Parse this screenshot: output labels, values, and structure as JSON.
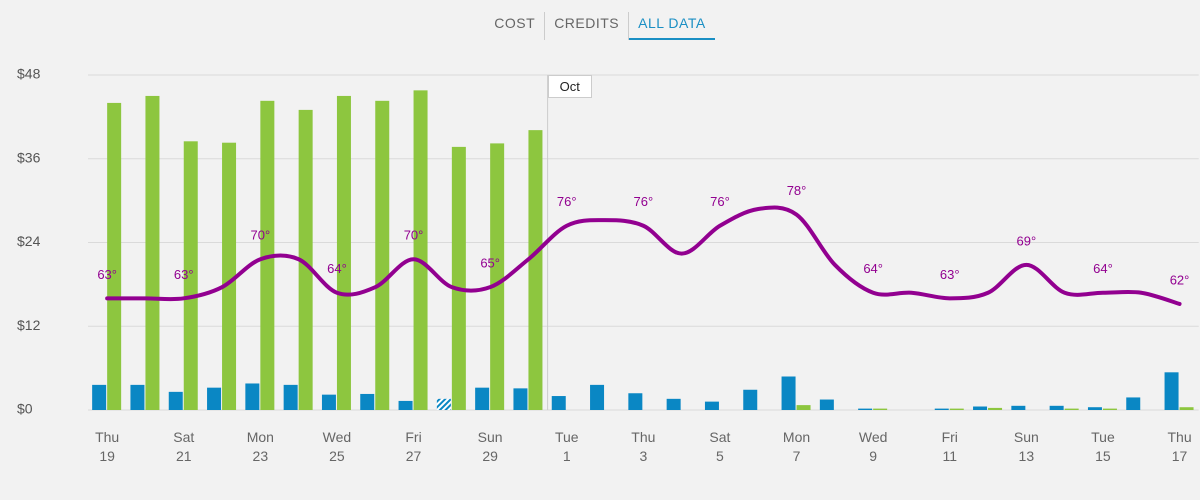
{
  "tabs": [
    {
      "label": "COST"
    },
    {
      "label": "CREDITS"
    },
    {
      "label": "ALL DATA",
      "active": true
    }
  ],
  "chart_data": {
    "type": "bar",
    "categories": [
      "Thu 19",
      null,
      "Sat 21",
      null,
      "Mon 23",
      null,
      "Wed 25",
      null,
      "Fri 27",
      null,
      "Sun 29",
      null,
      "Tue 1",
      null,
      "Thu 3",
      null,
      "Sat 5",
      null,
      "Mon 7",
      null,
      "Wed 9",
      null,
      "Fri 11",
      null,
      "Sun 13",
      null,
      "Tue 15",
      null,
      "Thu 17"
    ],
    "month_marker": {
      "label": "Oct",
      "category": 12
    },
    "ylim": [
      0,
      48
    ],
    "yticks": [
      {
        "value": 0,
        "label": "$0"
      },
      {
        "value": 12,
        "label": "$12"
      },
      {
        "value": 24,
        "label": "$24"
      },
      {
        "value": 36,
        "label": "$36"
      },
      {
        "value": 48,
        "label": "$48"
      }
    ],
    "y2lim": [
      43,
      103
    ],
    "grid": true,
    "hatched_index": 9,
    "series": [
      {
        "color": "#0a87c4",
        "values": [
          3.6,
          3.6,
          2.6,
          3.2,
          3.8,
          3.6,
          2.2,
          2.3,
          1.3,
          1.6,
          3.2,
          3.1,
          2.0,
          3.6,
          2.4,
          1.6,
          1.2,
          2.9,
          4.8,
          1.5,
          0.2,
          0,
          0.2,
          0.5,
          0.6,
          0.6,
          0.4,
          1.8,
          5.4
        ]
      },
      {
        "color": "#8dc63f",
        "values": [
          44,
          45,
          38.5,
          38.3,
          44.3,
          43,
          45,
          44.3,
          45.8,
          37.7,
          38.2,
          40.1,
          0,
          0,
          0,
          0,
          0,
          0,
          0.7,
          0,
          0.2,
          0,
          0.2,
          0.3,
          0,
          0.2,
          0.2,
          0,
          0.4
        ]
      },
      {
        "type": "line",
        "axis": "y2",
        "color": "#920090",
        "values": [
          63,
          63,
          63,
          65,
          70,
          70,
          64,
          65,
          70,
          65,
          65,
          70,
          76,
          77,
          76,
          71,
          76,
          79,
          78,
          69,
          64,
          64,
          63,
          64,
          69,
          64,
          64,
          64,
          62
        ],
        "value_labels": [
          "63°",
          null,
          "63°",
          null,
          "70°",
          null,
          "64°",
          null,
          "70°",
          null,
          "65°",
          null,
          "76°",
          null,
          "76°",
          null,
          "76°",
          null,
          "78°",
          null,
          "64°",
          null,
          "63°",
          null,
          "69°",
          null,
          "64°",
          null,
          "62°"
        ]
      }
    ]
  }
}
